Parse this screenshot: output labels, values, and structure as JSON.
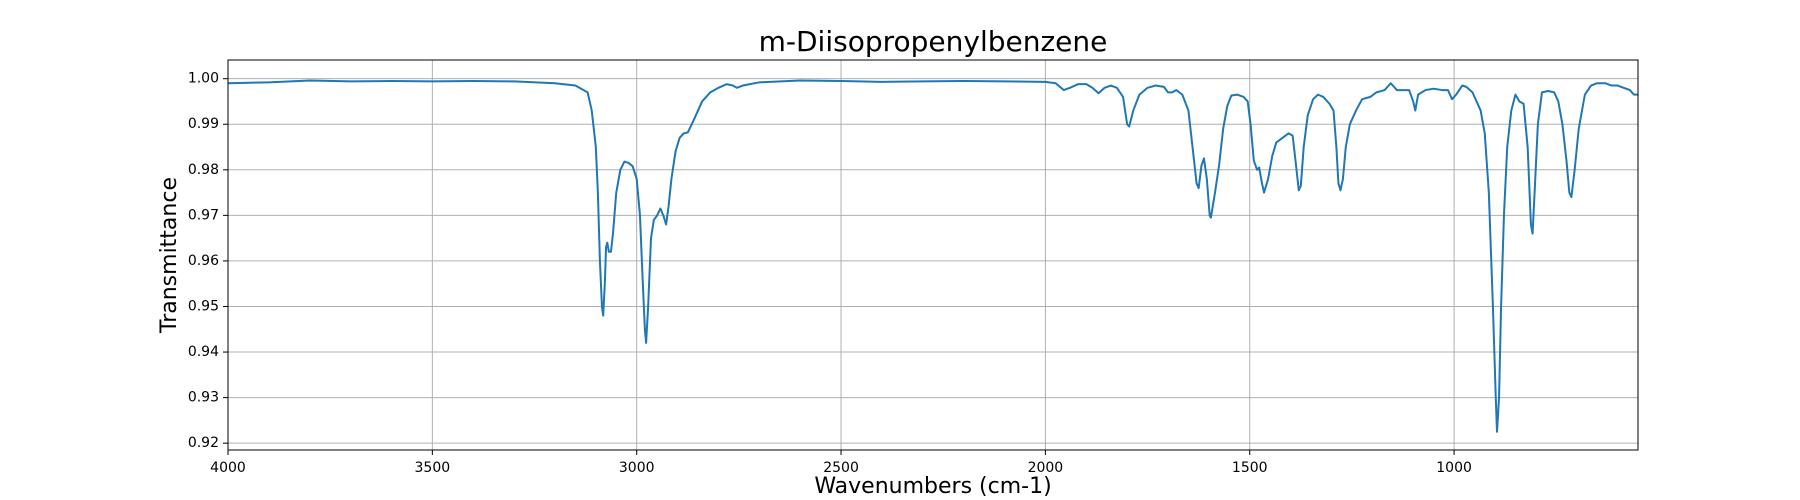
{
  "chart_data": {
    "type": "line",
    "title": "m-Diisopropenylbenzene",
    "x_label": "Wavenumbers (cm-1)",
    "y_label": "Transmittance",
    "color": "#1f77b4",
    "grid": true,
    "xlim": [
      4000,
      550
    ],
    "ylim": [
      0.9185,
      1.0041
    ],
    "xticks": [
      4000,
      3500,
      3000,
      2500,
      2000,
      1500,
      1000
    ],
    "yticks": [
      0.92,
      0.93,
      0.94,
      0.95,
      0.96,
      0.97,
      0.98,
      0.99,
      {
        "value": 1,
        "label": "1.00"
      }
    ],
    "x": [
      4000,
      3900,
      3800,
      3700,
      3600,
      3500,
      3400,
      3300,
      3200,
      3150,
      3120,
      3110,
      3100,
      3095,
      3090,
      3085,
      3082,
      3078,
      3075,
      3072,
      3068,
      3063,
      3058,
      3050,
      3040,
      3030,
      3020,
      3010,
      3000,
      2992,
      2985,
      2980,
      2977,
      2972,
      2965,
      2958,
      2950,
      2942,
      2935,
      2928,
      2922,
      2915,
      2905,
      2895,
      2885,
      2875,
      2860,
      2840,
      2820,
      2800,
      2780,
      2765,
      2755,
      2740,
      2700,
      2600,
      2500,
      2400,
      2300,
      2200,
      2100,
      2000,
      1975,
      1955,
      1940,
      1920,
      1900,
      1885,
      1870,
      1855,
      1840,
      1825,
      1810,
      1800,
      1795,
      1785,
      1770,
      1750,
      1730,
      1710,
      1700,
      1690,
      1680,
      1665,
      1650,
      1640,
      1630,
      1625,
      1618,
      1612,
      1605,
      1598,
      1595,
      1585,
      1575,
      1565,
      1555,
      1545,
      1530,
      1515,
      1505,
      1498,
      1490,
      1482,
      1477,
      1470,
      1465,
      1455,
      1445,
      1435,
      1420,
      1405,
      1395,
      1388,
      1380,
      1375,
      1368,
      1358,
      1345,
      1333,
      1320,
      1305,
      1295,
      1288,
      1283,
      1278,
      1272,
      1265,
      1255,
      1240,
      1225,
      1205,
      1190,
      1170,
      1155,
      1140,
      1125,
      1110,
      1100,
      1095,
      1088,
      1070,
      1050,
      1030,
      1015,
      1005,
      995,
      980,
      970,
      955,
      945,
      935,
      925,
      915,
      905,
      898,
      895,
      890,
      885,
      878,
      870,
      860,
      850,
      840,
      830,
      820,
      812,
      808,
      803,
      795,
      785,
      770,
      755,
      745,
      735,
      725,
      718,
      713,
      705,
      695,
      680,
      665,
      650,
      630,
      615,
      600,
      585,
      570,
      560,
      550
    ],
    "values": [
      0.999,
      0.9992,
      0.9996,
      0.9994,
      0.9995,
      0.9994,
      0.9995,
      0.9994,
      0.999,
      0.9985,
      0.997,
      0.993,
      0.985,
      0.975,
      0.96,
      0.95,
      0.948,
      0.955,
      0.963,
      0.964,
      0.962,
      0.962,
      0.966,
      0.975,
      0.98,
      0.9818,
      0.9815,
      0.9808,
      0.978,
      0.97,
      0.955,
      0.945,
      0.942,
      0.95,
      0.965,
      0.969,
      0.97,
      0.9715,
      0.97,
      0.968,
      0.972,
      0.978,
      0.984,
      0.987,
      0.988,
      0.9882,
      0.991,
      0.995,
      0.997,
      0.998,
      0.9988,
      0.9985,
      0.998,
      0.9985,
      0.9992,
      0.9996,
      0.9995,
      0.9993,
      0.9994,
      0.9995,
      0.9994,
      0.9993,
      0.999,
      0.9975,
      0.998,
      0.9988,
      0.9988,
      0.998,
      0.9968,
      0.998,
      0.9985,
      0.998,
      0.996,
      0.99,
      0.9895,
      0.993,
      0.9965,
      0.998,
      0.9985,
      0.9982,
      0.997,
      0.997,
      0.9975,
      0.9965,
      0.993,
      0.985,
      0.977,
      0.976,
      0.981,
      0.9825,
      0.978,
      0.97,
      0.9695,
      0.975,
      0.981,
      0.989,
      0.994,
      0.9963,
      0.9965,
      0.996,
      0.995,
      0.99,
      0.982,
      0.98,
      0.9805,
      0.977,
      0.975,
      0.978,
      0.983,
      0.986,
      0.987,
      0.988,
      0.9875,
      0.982,
      0.9755,
      0.9765,
      0.985,
      0.992,
      0.9955,
      0.9965,
      0.996,
      0.9945,
      0.993,
      0.985,
      0.977,
      0.9755,
      0.978,
      0.985,
      0.99,
      0.993,
      0.9955,
      0.996,
      0.997,
      0.9975,
      0.999,
      0.9975,
      0.9975,
      0.9975,
      0.995,
      0.993,
      0.9965,
      0.9975,
      0.9978,
      0.9975,
      0.9975,
      0.9955,
      0.9965,
      0.9985,
      0.9982,
      0.997,
      0.995,
      0.993,
      0.988,
      0.975,
      0.95,
      0.93,
      0.9225,
      0.93,
      0.95,
      0.97,
      0.985,
      0.993,
      0.9965,
      0.995,
      0.9945,
      0.985,
      0.968,
      0.966,
      0.975,
      0.99,
      0.997,
      0.9973,
      0.997,
      0.995,
      0.99,
      0.982,
      0.975,
      0.974,
      0.98,
      0.989,
      0.9965,
      0.9985,
      0.999,
      0.999,
      0.9985,
      0.9985,
      0.998,
      0.9975,
      0.9965,
      0.9965
    ]
  }
}
